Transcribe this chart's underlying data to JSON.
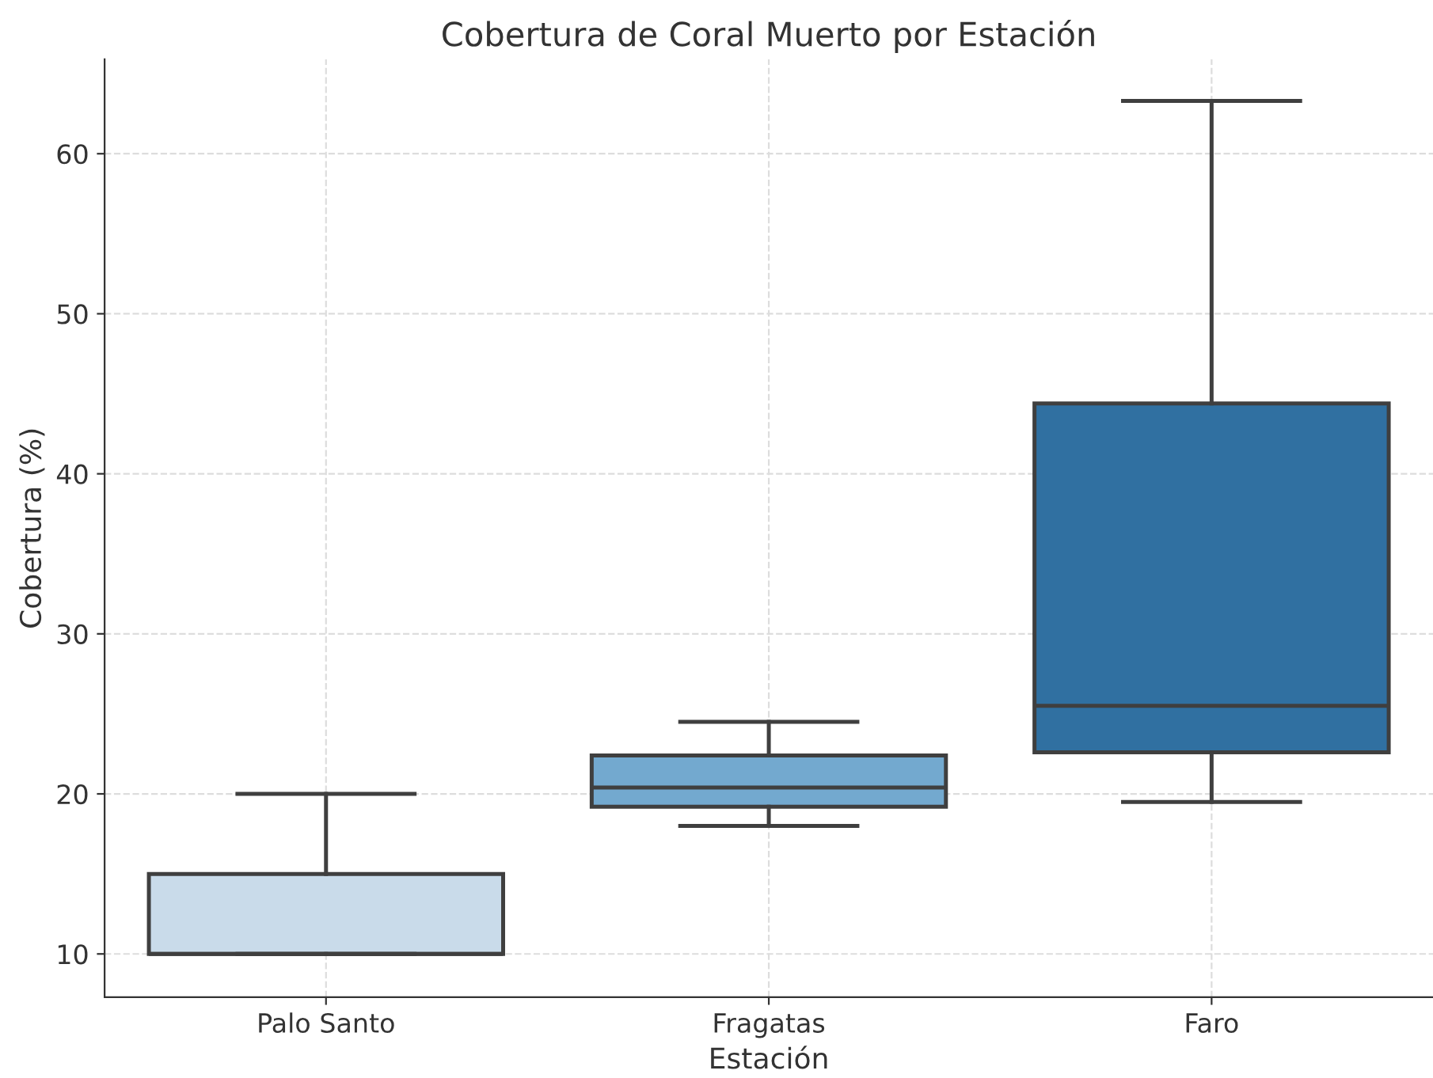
{
  "chart_data": {
    "type": "box",
    "title": "Cobertura de Coral Muerto por Estación",
    "xlabel": "Estación",
    "ylabel": "Cobertura (%)",
    "categories": [
      "Palo Santo",
      "Fragatas",
      "Faro"
    ],
    "boxes": [
      {
        "low": 10,
        "q1": 10,
        "median": 10,
        "q3": 15,
        "high": 20
      },
      {
        "low": 18,
        "q1": 19.2,
        "median": 20.4,
        "q3": 22.4,
        "high": 24.5
      },
      {
        "low": 19.5,
        "q1": 22.6,
        "median": 25.5,
        "q3": 44.4,
        "high": 63.3
      }
    ],
    "colors": [
      "#c9dbea",
      "#73a9cf",
      "#3070a1"
    ],
    "ylim": [
      7.3,
      65.9
    ],
    "yticks": [
      10,
      20,
      30,
      40,
      50,
      60
    ],
    "grid": true
  }
}
